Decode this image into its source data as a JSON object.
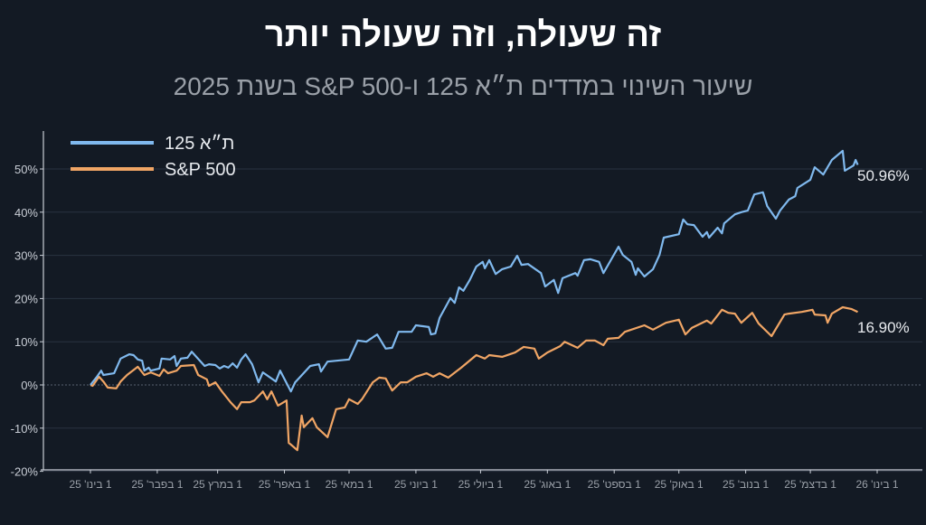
{
  "title": "זה שעולה, וזה שעולה יותר",
  "subtitle": "שיעור השינוי במדדים ת״א 125 ו-S&P 500 בשנת 2025",
  "chart_data": {
    "type": "line",
    "title": "זה שעולה, וזה שעולה יותר",
    "subtitle": "שיעור השינוי במדדים ת״א 125 ו-S&P 500 בשנת 2025",
    "xlabel": "",
    "ylabel": "",
    "xlim": [
      "2025-01-01",
      "2026-01-01"
    ],
    "ylim": [
      -20,
      55
    ],
    "yticks": [
      -20,
      -10,
      0,
      10,
      20,
      30,
      40,
      50
    ],
    "ytick_labels": [
      "-20%",
      "-10%",
      "0%",
      "10%",
      "20%",
      "30%",
      "40%",
      "50%"
    ],
    "xticks": [
      "2025-01-01",
      "2025-02-01",
      "2025-03-01",
      "2025-04-01",
      "2025-05-01",
      "2025-06-01",
      "2025-07-01",
      "2025-08-01",
      "2025-09-01",
      "2025-10-01",
      "2025-11-01",
      "2025-12-01",
      "2026-01-01"
    ],
    "xtick_labels": [
      "1 בינו' 25",
      "1 בפבר' 25",
      "1 במרץ 25",
      "1 באפר' 25",
      "1 במאי 25",
      "1 ביוני 25",
      "1 ביולי 25",
      "1 באוג' 25",
      "1 בספט' 25",
      "1 באוק' 25",
      "1 בנוב' 25",
      "1 בדצמ' 25",
      "1 בינו' 26"
    ],
    "grid": "horizontal",
    "legend_position": "top-left",
    "series": [
      {
        "name": "ת״א 125",
        "color": "#80b9ee",
        "end_label": "50.96%",
        "points": [
          [
            "2025-01-01",
            0
          ],
          [
            "2025-01-04",
            1.9
          ],
          [
            "2025-01-06",
            3.3
          ],
          [
            "2025-01-07",
            2.3
          ],
          [
            "2025-01-12",
            2.7
          ],
          [
            "2025-01-15",
            6.1
          ],
          [
            "2025-01-19",
            7.1
          ],
          [
            "2025-01-21",
            6.9
          ],
          [
            "2025-01-23",
            5.9
          ],
          [
            "2025-01-25",
            5.6
          ],
          [
            "2025-01-26",
            3.3
          ],
          [
            "2025-01-28",
            4.0
          ],
          [
            "2025-01-29",
            3.3
          ],
          [
            "2025-02-02",
            3.8
          ],
          [
            "2025-02-03",
            6.1
          ],
          [
            "2025-02-07",
            5.9
          ],
          [
            "2025-02-09",
            6.7
          ],
          [
            "2025-02-10",
            4.4
          ],
          [
            "2025-02-12",
            6.1
          ],
          [
            "2025-02-15",
            6.3
          ],
          [
            "2025-02-17",
            7.7
          ],
          [
            "2025-02-23",
            4.4
          ],
          [
            "2025-02-25",
            4.8
          ],
          [
            "2025-02-28",
            4.6
          ],
          [
            "2025-03-02",
            3.8
          ],
          [
            "2025-03-04",
            4.4
          ],
          [
            "2025-03-06",
            4.0
          ],
          [
            "2025-03-08",
            5.0
          ],
          [
            "2025-03-10",
            4.0
          ],
          [
            "2025-03-12",
            5.9
          ],
          [
            "2025-03-14",
            7.1
          ],
          [
            "2025-03-17",
            4.8
          ],
          [
            "2025-03-20",
            0.6
          ],
          [
            "2025-03-22",
            2.9
          ],
          [
            "2025-03-28",
            0.8
          ],
          [
            "2025-03-30",
            3.3
          ],
          [
            "2025-04-04",
            -1.5
          ],
          [
            "2025-04-06",
            0.6
          ],
          [
            "2025-04-13",
            4.4
          ],
          [
            "2025-04-17",
            4.8
          ],
          [
            "2025-04-18",
            3.1
          ],
          [
            "2025-04-21",
            5.4
          ],
          [
            "2025-05-01",
            5.9
          ],
          [
            "2025-05-05",
            10.3
          ],
          [
            "2025-05-09",
            10.0
          ],
          [
            "2025-05-14",
            11.7
          ],
          [
            "2025-05-18",
            8.4
          ],
          [
            "2025-05-21",
            8.6
          ],
          [
            "2025-05-24",
            12.3
          ],
          [
            "2025-05-30",
            12.3
          ],
          [
            "2025-06-01",
            13.8
          ],
          [
            "2025-06-07",
            13.4
          ],
          [
            "2025-06-08",
            11.7
          ],
          [
            "2025-06-10",
            11.9
          ],
          [
            "2025-06-12",
            15.5
          ],
          [
            "2025-06-17",
            20.1
          ],
          [
            "2025-06-19",
            19.0
          ],
          [
            "2025-06-21",
            22.6
          ],
          [
            "2025-06-23",
            21.8
          ],
          [
            "2025-06-26",
            24.3
          ],
          [
            "2025-06-29",
            27.4
          ],
          [
            "2025-07-02",
            28.5
          ],
          [
            "2025-07-03",
            27.0
          ],
          [
            "2025-07-05",
            28.9
          ],
          [
            "2025-07-08",
            25.7
          ],
          [
            "2025-07-11",
            26.8
          ],
          [
            "2025-07-15",
            27.4
          ],
          [
            "2025-07-18",
            29.9
          ],
          [
            "2025-07-20",
            27.8
          ],
          [
            "2025-07-23",
            28.0
          ],
          [
            "2025-07-29",
            25.9
          ],
          [
            "2025-07-31",
            22.8
          ],
          [
            "2025-08-04",
            24.3
          ],
          [
            "2025-08-06",
            21.3
          ],
          [
            "2025-08-08",
            24.7
          ],
          [
            "2025-08-14",
            25.9
          ],
          [
            "2025-08-15",
            25.3
          ],
          [
            "2025-08-18",
            28.9
          ],
          [
            "2025-08-21",
            29.1
          ],
          [
            "2025-08-25",
            28.5
          ],
          [
            "2025-08-27",
            25.9
          ],
          [
            "2025-09-03",
            32.0
          ],
          [
            "2025-09-05",
            30.1
          ],
          [
            "2025-09-09",
            28.5
          ],
          [
            "2025-09-11",
            25.5
          ],
          [
            "2025-09-12",
            27.0
          ],
          [
            "2025-09-15",
            25.1
          ],
          [
            "2025-09-19",
            26.8
          ],
          [
            "2025-09-22",
            30.1
          ],
          [
            "2025-09-24",
            34.1
          ],
          [
            "2025-10-01",
            34.9
          ],
          [
            "2025-10-03",
            38.3
          ],
          [
            "2025-10-05",
            37.2
          ],
          [
            "2025-10-08",
            37.0
          ],
          [
            "2025-10-12",
            34.3
          ],
          [
            "2025-10-14",
            35.4
          ],
          [
            "2025-10-15",
            34.1
          ],
          [
            "2025-10-19",
            36.4
          ],
          [
            "2025-10-21",
            35.1
          ],
          [
            "2025-10-22",
            37.4
          ],
          [
            "2025-10-27",
            39.5
          ],
          [
            "2025-10-30",
            40.0
          ],
          [
            "2025-11-02",
            40.4
          ],
          [
            "2025-11-05",
            44.1
          ],
          [
            "2025-11-09",
            44.6
          ],
          [
            "2025-11-11",
            41.4
          ],
          [
            "2025-11-15",
            38.5
          ],
          [
            "2025-11-17",
            40.4
          ],
          [
            "2025-11-21",
            42.9
          ],
          [
            "2025-11-24",
            43.7
          ],
          [
            "2025-11-25",
            45.6
          ],
          [
            "2025-12-01",
            47.5
          ],
          [
            "2025-12-03",
            50.4
          ],
          [
            "2025-12-07",
            48.7
          ],
          [
            "2025-12-11",
            52.1
          ],
          [
            "2025-12-16",
            54.2
          ],
          [
            "2025-12-17",
            49.6
          ],
          [
            "2025-12-21",
            50.8
          ],
          [
            "2025-12-22",
            52.1
          ],
          [
            "2025-12-23",
            50.96
          ]
        ]
      },
      {
        "name": "S&P 500",
        "color": "#f0a565",
        "end_label": "16.90%",
        "points": [
          [
            "2025-01-01",
            0
          ],
          [
            "2025-01-02",
            -0.2
          ],
          [
            "2025-01-05",
            1.9
          ],
          [
            "2025-01-07",
            0.8
          ],
          [
            "2025-01-09",
            -0.6
          ],
          [
            "2025-01-13",
            -0.8
          ],
          [
            "2025-01-15",
            0.8
          ],
          [
            "2025-01-18",
            2.3
          ],
          [
            "2025-01-23",
            4.2
          ],
          [
            "2025-01-26",
            2.3
          ],
          [
            "2025-01-29",
            2.9
          ],
          [
            "2025-02-02",
            2.1
          ],
          [
            "2025-02-04",
            3.6
          ],
          [
            "2025-02-06",
            2.7
          ],
          [
            "2025-02-10",
            3.3
          ],
          [
            "2025-02-12",
            4.4
          ],
          [
            "2025-02-18",
            4.6
          ],
          [
            "2025-02-20",
            2.3
          ],
          [
            "2025-02-24",
            1.3
          ],
          [
            "2025-02-25",
            -0.2
          ],
          [
            "2025-02-28",
            0.6
          ],
          [
            "2025-03-03",
            -1.5
          ],
          [
            "2025-03-07",
            -4.0
          ],
          [
            "2025-03-10",
            -5.6
          ],
          [
            "2025-03-12",
            -4.0
          ],
          [
            "2025-03-16",
            -4.0
          ],
          [
            "2025-03-18",
            -3.6
          ],
          [
            "2025-03-22",
            -1.5
          ],
          [
            "2025-03-24",
            -3.3
          ],
          [
            "2025-03-26",
            -1.5
          ],
          [
            "2025-03-29",
            -4.8
          ],
          [
            "2025-04-02",
            -3.6
          ],
          [
            "2025-04-03",
            -13.4
          ],
          [
            "2025-04-04",
            -13.8
          ],
          [
            "2025-04-07",
            -15.1
          ],
          [
            "2025-04-09",
            -7.1
          ],
          [
            "2025-04-10",
            -9.8
          ],
          [
            "2025-04-14",
            -7.7
          ],
          [
            "2025-04-16",
            -9.8
          ],
          [
            "2025-04-21",
            -12.1
          ],
          [
            "2025-04-25",
            -5.6
          ],
          [
            "2025-04-29",
            -5.2
          ],
          [
            "2025-05-01",
            -3.3
          ],
          [
            "2025-05-05",
            -4.4
          ],
          [
            "2025-05-07",
            -3.3
          ],
          [
            "2025-05-12",
            0.6
          ],
          [
            "2025-05-15",
            1.7
          ],
          [
            "2025-05-18",
            1.5
          ],
          [
            "2025-05-21",
            -1.3
          ],
          [
            "2025-05-25",
            0.6
          ],
          [
            "2025-05-28",
            0.6
          ],
          [
            "2025-06-01",
            1.9
          ],
          [
            "2025-06-06",
            2.7
          ],
          [
            "2025-06-09",
            1.9
          ],
          [
            "2025-06-12",
            2.7
          ],
          [
            "2025-06-16",
            1.7
          ],
          [
            "2025-06-22",
            4.0
          ],
          [
            "2025-06-29",
            6.9
          ],
          [
            "2025-07-03",
            6.1
          ],
          [
            "2025-07-05",
            6.9
          ],
          [
            "2025-07-11",
            6.5
          ],
          [
            "2025-07-17",
            7.5
          ],
          [
            "2025-07-21",
            8.8
          ],
          [
            "2025-07-26",
            8.4
          ],
          [
            "2025-07-28",
            6.1
          ],
          [
            "2025-08-01",
            7.5
          ],
          [
            "2025-08-07",
            9.0
          ],
          [
            "2025-08-09",
            10.0
          ],
          [
            "2025-08-15",
            8.6
          ],
          [
            "2025-08-19",
            10.3
          ],
          [
            "2025-08-23",
            10.3
          ],
          [
            "2025-08-27",
            9.2
          ],
          [
            "2025-08-29",
            10.7
          ],
          [
            "2025-09-03",
            10.9
          ],
          [
            "2025-09-06",
            12.3
          ],
          [
            "2025-09-15",
            13.8
          ],
          [
            "2025-09-19",
            12.8
          ],
          [
            "2025-09-25",
            14.4
          ],
          [
            "2025-10-01",
            15.1
          ],
          [
            "2025-10-04",
            11.7
          ],
          [
            "2025-10-07",
            13.2
          ],
          [
            "2025-10-14",
            14.9
          ],
          [
            "2025-10-16",
            14.2
          ],
          [
            "2025-10-21",
            17.4
          ],
          [
            "2025-10-24",
            16.7
          ],
          [
            "2025-10-27",
            16.5
          ],
          [
            "2025-10-30",
            14.4
          ],
          [
            "2025-11-04",
            16.7
          ],
          [
            "2025-11-07",
            14.2
          ],
          [
            "2025-11-13",
            11.3
          ],
          [
            "2025-11-19",
            16.3
          ],
          [
            "2025-11-21",
            16.5
          ],
          [
            "2025-11-27",
            16.9
          ],
          [
            "2025-12-02",
            17.4
          ],
          [
            "2025-12-03",
            16.3
          ],
          [
            "2025-12-08",
            16.1
          ],
          [
            "2025-12-09",
            14.4
          ],
          [
            "2025-12-11",
            16.5
          ],
          [
            "2025-12-16",
            18.0
          ],
          [
            "2025-12-20",
            17.6
          ],
          [
            "2025-12-23",
            16.9
          ]
        ]
      }
    ]
  }
}
